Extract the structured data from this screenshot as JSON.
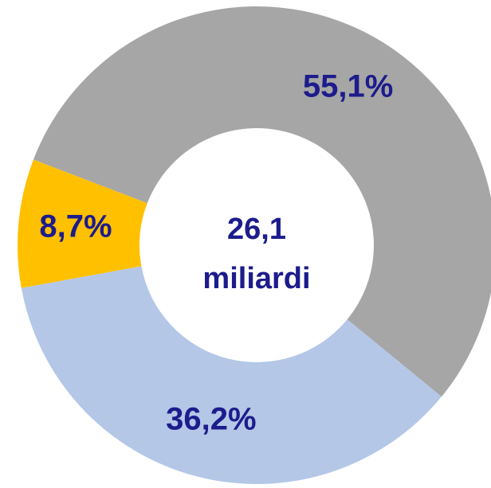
{
  "chart_data": {
    "type": "donut",
    "values": [
      55.1,
      36.2,
      8.7
    ],
    "value_labels": [
      "55,1%",
      "36,2%",
      "8,7%"
    ],
    "colors": [
      "#a6a6a6",
      "#b4c7e7",
      "#ffc000"
    ],
    "center_text": [
      "26,1",
      "miliardi"
    ]
  }
}
